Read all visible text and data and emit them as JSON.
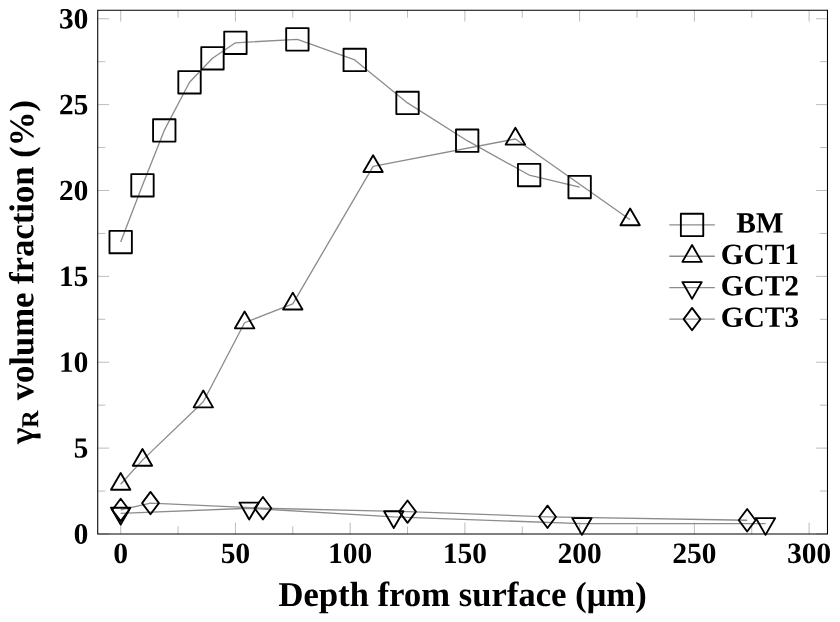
{
  "chart_data": {
    "type": "line",
    "xlabel": "Depth from surface (μm)",
    "ylabel": "γ$_{R}$ volume fraction (%)",
    "xlim": [
      -10,
      308
    ],
    "ylim": [
      0,
      30.5
    ],
    "xticks": [
      0,
      50,
      100,
      150,
      200,
      250,
      300
    ],
    "yticks": [
      0,
      5,
      10,
      15,
      20,
      25,
      30
    ],
    "legend": "right",
    "grid": false,
    "series": [
      {
        "name": "BM",
        "color": "#000000",
        "marker": "square",
        "x": [
          0,
          9.5,
          19,
          30,
          40,
          50,
          77,
          102,
          125,
          151,
          178,
          200
        ],
        "values": [
          17.0,
          20.3,
          23.5,
          26.3,
          27.7,
          28.6,
          28.8,
          27.6,
          25.1,
          22.9,
          20.9,
          20.2
        ]
      },
      {
        "name": "GCT1",
        "color": "#000000",
        "marker": "triangle",
        "x": [
          0,
          9.5,
          36,
          54,
          75,
          110,
          172,
          222
        ],
        "values": [
          2.9,
          4.3,
          7.7,
          12.3,
          13.4,
          21.4,
          23.0,
          18.3
        ]
      },
      {
        "name": "GCT2",
        "color": "#000000",
        "marker": "triangle-down",
        "x": [
          0,
          56,
          119,
          201,
          281
        ],
        "values": [
          1.2,
          1.5,
          1.0,
          0.6,
          0.6
        ]
      },
      {
        "name": "GCT3",
        "color": "#000000",
        "marker": "diamond",
        "x": [
          0,
          13,
          62,
          125,
          186,
          273
        ],
        "values": [
          1.4,
          1.8,
          1.5,
          1.3,
          1.0,
          0.8
        ]
      }
    ]
  }
}
